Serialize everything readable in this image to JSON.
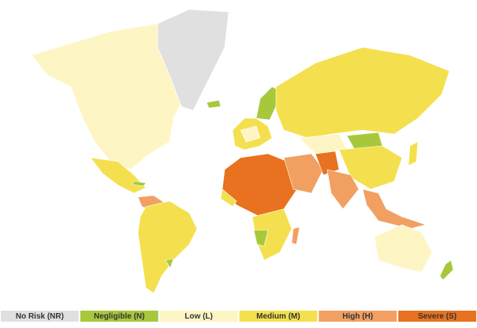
{
  "legend": [
    {
      "label": "No Risk (NR)",
      "color": "#e0e0e0"
    },
    {
      "label": "Negligible (N)",
      "color": "#a8c83c"
    },
    {
      "label": "Low (L)",
      "color": "#fdf6c4"
    },
    {
      "label": "Medium (M)",
      "color": "#f4e04e"
    },
    {
      "label": "High (H)",
      "color": "#f1a062"
    },
    {
      "label": "Severe (S)",
      "color": "#e8721f"
    }
  ]
}
